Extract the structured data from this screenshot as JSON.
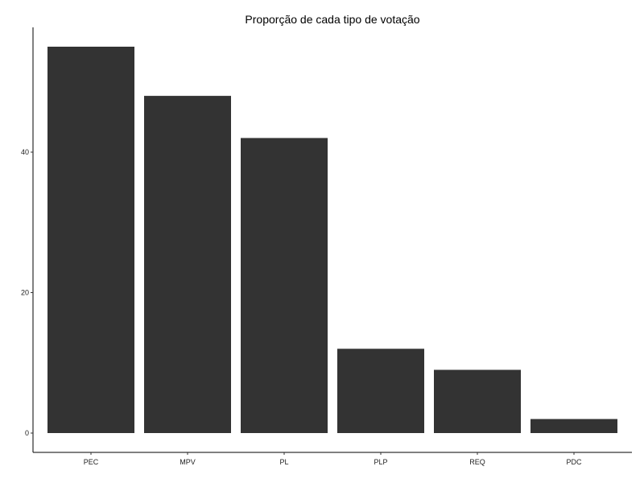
{
  "chart_data": {
    "type": "bar",
    "title": "Proporção de cada tipo de votação",
    "xlabel": "",
    "ylabel": "",
    "categories": [
      "PEC",
      "MPV",
      "PL",
      "PLP",
      "REQ",
      "PDC"
    ],
    "values": [
      55,
      48,
      42,
      12,
      9,
      2
    ],
    "ylim": [
      -2.75,
      57.75
    ],
    "yticks": [
      0,
      20,
      40
    ],
    "grid": false,
    "legend": "none",
    "bar_color": "#333333"
  }
}
